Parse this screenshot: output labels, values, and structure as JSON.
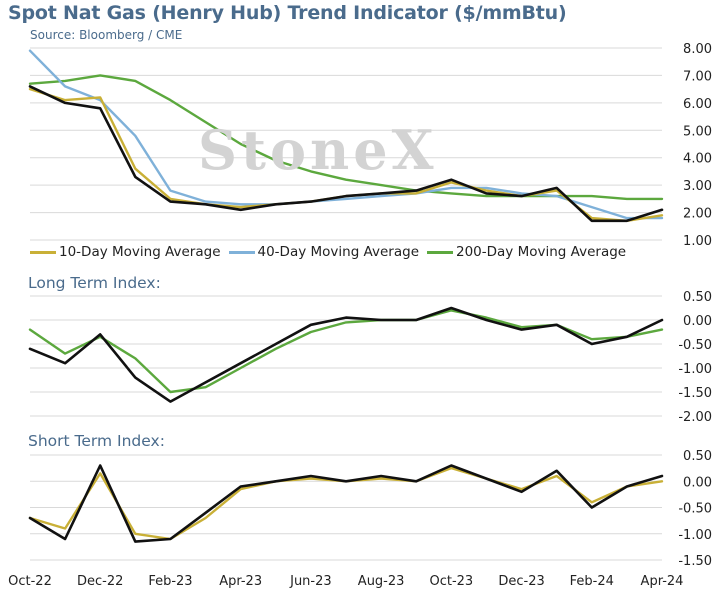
{
  "title": "Spot Nat Gas (Henry Hub) Trend Indicator ($/mmBtu)",
  "source": "Source: Bloomberg / CME",
  "watermark": "StoneX",
  "colors": {
    "price": "#111111",
    "ma10": "#c9b037",
    "ma40": "#7fb1d9",
    "ma200": "#5ca83e",
    "text": "#4a6b8c",
    "grid": "#d9d9d9"
  },
  "legend": [
    {
      "label": "10-Day Moving Average",
      "color": "#c9b037"
    },
    {
      "label": "40-Day Moving Average",
      "color": "#7fb1d9"
    },
    {
      "label": "200-Day Moving Average",
      "color": "#5ca83e"
    }
  ],
  "x_tick_labels": [
    "Oct-22",
    "Dec-22",
    "Feb-23",
    "Apr-23",
    "Jun-23",
    "Aug-23",
    "Oct-23",
    "Dec-23",
    "Feb-24",
    "Apr-24"
  ],
  "chart_data": [
    {
      "type": "line",
      "title": "Spot Nat Gas (Henry Hub) Trend Indicator ($/mmBtu)",
      "x": [
        "2022-10",
        "2022-11",
        "2022-12",
        "2023-01",
        "2023-02",
        "2023-03",
        "2023-04",
        "2023-05",
        "2023-06",
        "2023-07",
        "2023-08",
        "2023-09",
        "2023-10",
        "2023-11",
        "2023-12",
        "2024-01",
        "2024-02",
        "2024-03",
        "2024-04"
      ],
      "ylim": [
        1.0,
        8.0
      ],
      "yticks": [
        "1.00",
        "2.00",
        "3.00",
        "4.00",
        "5.00",
        "6.00",
        "7.00",
        "8.00"
      ],
      "series": [
        {
          "name": "",
          "color": "#111111",
          "values": [
            6.6,
            6.0,
            5.8,
            3.3,
            2.4,
            2.3,
            2.1,
            2.3,
            2.4,
            2.6,
            2.7,
            2.8,
            3.2,
            2.7,
            2.6,
            2.9,
            1.7,
            1.7,
            2.1
          ]
        },
        {
          "name": "10-Day Moving Average",
          "color": "#c9b037",
          "values": [
            6.5,
            6.1,
            6.2,
            3.6,
            2.5,
            2.3,
            2.2,
            2.3,
            2.4,
            2.6,
            2.7,
            2.7,
            3.1,
            2.8,
            2.6,
            2.8,
            1.8,
            1.7,
            1.9
          ]
        },
        {
          "name": "40-Day Moving Average",
          "color": "#7fb1d9",
          "values": [
            7.9,
            6.6,
            6.1,
            4.8,
            2.8,
            2.4,
            2.3,
            2.3,
            2.4,
            2.5,
            2.6,
            2.7,
            2.9,
            2.9,
            2.7,
            2.6,
            2.2,
            1.8,
            1.8
          ]
        },
        {
          "name": "200-Day Moving Average",
          "color": "#5ca83e",
          "values": [
            6.7,
            6.8,
            7.0,
            6.8,
            6.1,
            5.3,
            4.5,
            3.9,
            3.5,
            3.2,
            3.0,
            2.8,
            2.7,
            2.6,
            2.6,
            2.6,
            2.6,
            2.5,
            2.5
          ]
        }
      ]
    },
    {
      "type": "line",
      "title": "Long Term Index:",
      "x": [
        "2022-10",
        "2022-11",
        "2022-12",
        "2023-01",
        "2023-02",
        "2023-03",
        "2023-04",
        "2023-05",
        "2023-06",
        "2023-07",
        "2023-08",
        "2023-09",
        "2023-10",
        "2023-11",
        "2023-12",
        "2024-01",
        "2024-02",
        "2024-03",
        "2024-04"
      ],
      "ylim": [
        -2.0,
        0.5
      ],
      "yticks": [
        "-2.00",
        "-1.50",
        "-1.00",
        "-0.50",
        "0.00",
        "0.50"
      ],
      "series": [
        {
          "name": "",
          "color": "#111111",
          "values": [
            -0.6,
            -0.9,
            -0.3,
            -1.2,
            -1.7,
            -1.3,
            -0.9,
            -0.5,
            -0.1,
            0.05,
            0.0,
            0.0,
            0.25,
            0.0,
            -0.2,
            -0.1,
            -0.5,
            -0.35,
            0.0
          ]
        },
        {
          "name": "",
          "color": "#5ca83e",
          "values": [
            -0.2,
            -0.7,
            -0.35,
            -0.8,
            -1.5,
            -1.4,
            -1.0,
            -0.6,
            -0.25,
            -0.05,
            0.0,
            0.0,
            0.2,
            0.05,
            -0.15,
            -0.1,
            -0.4,
            -0.35,
            -0.2
          ]
        }
      ]
    },
    {
      "type": "line",
      "title": "Short Term Index:",
      "x": [
        "2022-10",
        "2022-11",
        "2022-12",
        "2023-01",
        "2023-02",
        "2023-03",
        "2023-04",
        "2023-05",
        "2023-06",
        "2023-07",
        "2023-08",
        "2023-09",
        "2023-10",
        "2023-11",
        "2023-12",
        "2024-01",
        "2024-02",
        "2024-03",
        "2024-04"
      ],
      "ylim": [
        -1.5,
        0.5
      ],
      "yticks": [
        "-1.50",
        "-1.00",
        "-0.50",
        "0.00",
        "0.50"
      ],
      "series": [
        {
          "name": "",
          "color": "#111111",
          "values": [
            -0.7,
            -1.1,
            0.3,
            -1.15,
            -1.1,
            -0.6,
            -0.1,
            0.0,
            0.1,
            0.0,
            0.1,
            0.0,
            0.3,
            0.05,
            -0.2,
            0.2,
            -0.5,
            -0.1,
            0.1
          ]
        },
        {
          "name": "",
          "color": "#c9b037",
          "values": [
            -0.7,
            -0.9,
            0.15,
            -1.0,
            -1.1,
            -0.7,
            -0.15,
            0.0,
            0.05,
            0.0,
            0.05,
            0.0,
            0.25,
            0.05,
            -0.15,
            0.1,
            -0.4,
            -0.1,
            0.0
          ]
        }
      ]
    }
  ]
}
